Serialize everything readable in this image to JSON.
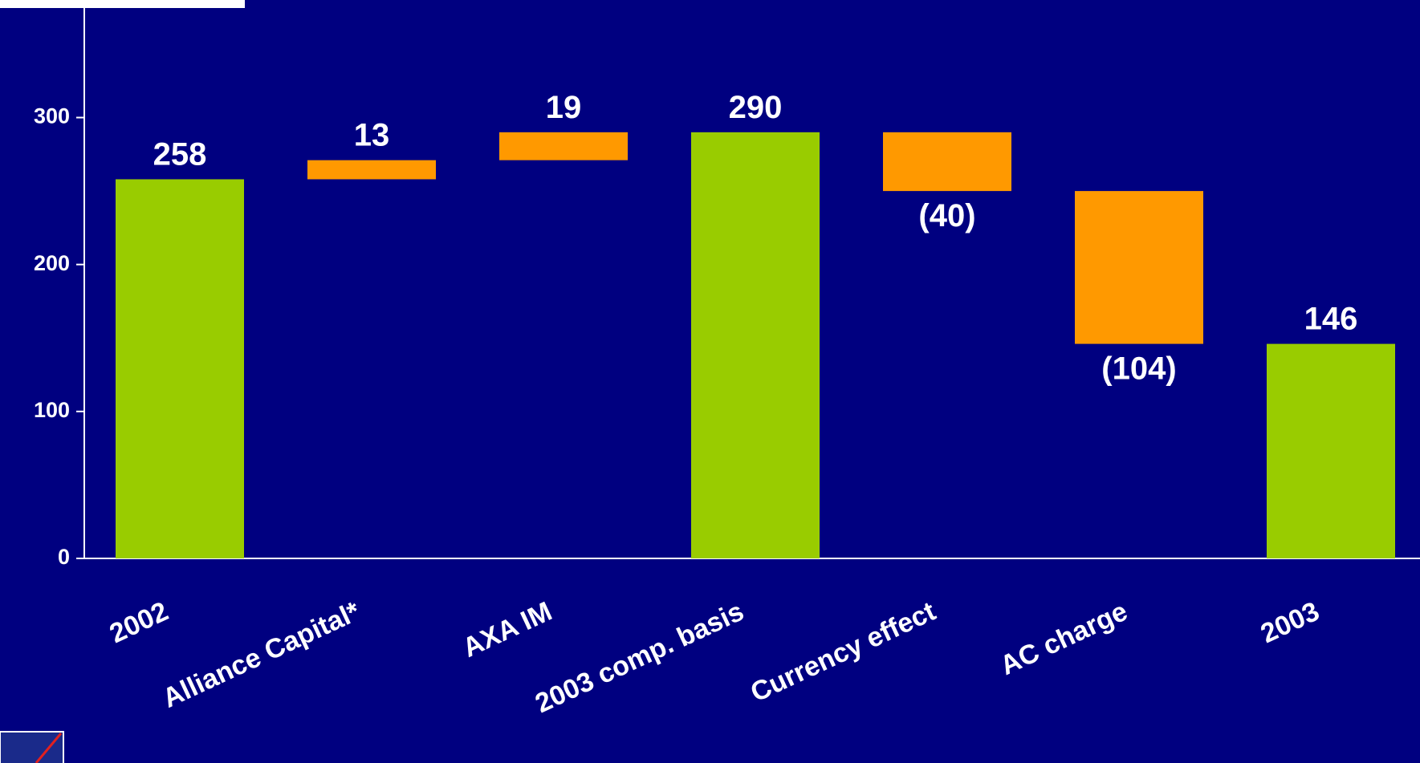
{
  "chart_data": {
    "type": "waterfall",
    "categories": [
      "2002",
      "Alliance Capital*",
      "AXA IM",
      "2003 comp. basis",
      "Currency effect",
      "AC charge",
      "2003"
    ],
    "values": [
      258,
      13,
      19,
      290,
      -40,
      -104,
      146
    ],
    "value_labels": [
      "258",
      "13",
      "19",
      "290",
      "(40)",
      "(104)",
      "146"
    ],
    "measure": [
      "absolute",
      "relative",
      "relative",
      "absolute",
      "relative",
      "relative",
      "absolute"
    ],
    "colors": {
      "absolute": "#99cc00",
      "relative": "#ff9900"
    },
    "ylim": [
      0,
      380
    ],
    "yticks": [
      0,
      100,
      200,
      300
    ]
  }
}
